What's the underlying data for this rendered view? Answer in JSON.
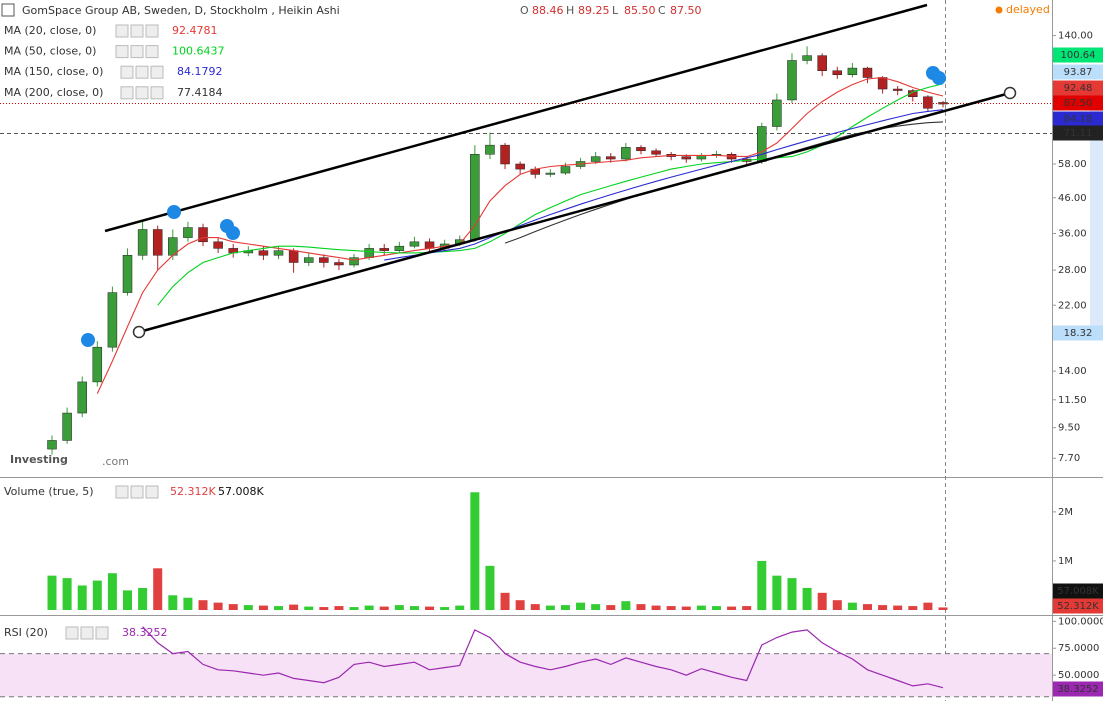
{
  "chart_data": [
    {
      "type": "candlestick",
      "title": "GomSpace Group AB, Sweden, D, Stockholm , Heikin Ashi",
      "ohlc": [
        {
          "label": "O",
          "value": "88.46"
        },
        {
          "label": "H",
          "value": "89.25"
        },
        {
          "label": "L",
          "value": "85.50"
        },
        {
          "label": "C",
          "value": "87.50"
        }
      ],
      "open": [
        8.2,
        8.7,
        10.5,
        13,
        16.5,
        24,
        31,
        37,
        31,
        35,
        37.5,
        34,
        32.5,
        31.5,
        32,
        31,
        32,
        29.5,
        30.5,
        29.5,
        29,
        30.5,
        32.5,
        32,
        33,
        34,
        32.5,
        33.5,
        34.5,
        62,
        66,
        58,
        56,
        54,
        54.5,
        57,
        59,
        61,
        60,
        65,
        63.5,
        62,
        61,
        60,
        61.5,
        62,
        60,
        59,
        75,
        90,
        118,
        122,
        110,
        107,
        112,
        105,
        97,
        96,
        92,
        88.46
      ],
      "high": [
        9,
        10.9,
        13.5,
        17.2,
        25,
        32.5,
        39,
        38,
        37,
        39,
        38.5,
        35,
        33.5,
        33,
        33,
        33,
        32.5,
        31.5,
        31.2,
        30.2,
        31.3,
        33.5,
        33.5,
        34,
        35.2,
        34.8,
        34.5,
        35.5,
        66,
        72,
        67,
        59,
        57,
        56,
        58.5,
        60.5,
        63,
        62.5,
        67,
        66,
        64.5,
        63,
        62,
        62.5,
        63.5,
        62.8,
        61,
        77,
        94,
        124,
        130,
        124,
        113,
        116,
        113,
        106,
        99,
        97,
        93,
        89.25
      ],
      "low": [
        7.9,
        8.5,
        10.2,
        12.6,
        16,
        23.5,
        30,
        28,
        30,
        34,
        33,
        31.5,
        30.5,
        30.8,
        30,
        30.2,
        27.5,
        28.8,
        28.5,
        28,
        28.5,
        30,
        31,
        31.5,
        32.5,
        31.8,
        32,
        33,
        34,
        60,
        56,
        54,
        52.5,
        53,
        53.8,
        56,
        58,
        58.5,
        59,
        62,
        61,
        59.5,
        58.5,
        59,
        60.5,
        58.5,
        57.5,
        58,
        73,
        88,
        115,
        106,
        104,
        105,
        101,
        94,
        93,
        89,
        83,
        85.5
      ],
      "close": [
        8.7,
        10.5,
        13,
        16.5,
        24,
        31,
        37,
        31,
        35,
        37.5,
        34,
        32.5,
        31.5,
        32,
        31,
        32,
        29.5,
        30.5,
        29.5,
        29,
        30.5,
        32.5,
        32,
        33,
        34,
        32.5,
        33.5,
        34.5,
        62,
        66,
        58,
        56,
        54,
        54.5,
        57,
        59,
        61,
        60,
        65,
        63.5,
        62,
        61,
        60,
        61.5,
        62,
        60,
        59,
        75,
        90,
        118,
        122,
        110,
        107,
        112,
        105,
        97,
        96,
        92,
        85,
        87.5
      ],
      "up_color": "#3a9d3a",
      "down_color": "#b22222",
      "series": [
        {
          "name": "MA (20, close, 0)",
          "last_label": "92.4781",
          "color": "#e53935",
          "values": [
            null,
            null,
            null,
            12,
            15,
            19,
            24,
            28,
            31,
            33.5,
            35,
            35,
            34,
            33.5,
            33,
            32.5,
            32,
            31.5,
            31,
            30.5,
            30,
            30.5,
            31,
            31.5,
            32,
            32.5,
            33,
            33.5,
            38,
            45,
            50,
            54,
            56,
            57,
            57.5,
            58,
            58.5,
            59,
            59.5,
            60.5,
            61,
            61.5,
            61.5,
            61.5,
            61.5,
            61.2,
            61,
            63,
            67,
            74,
            82,
            89,
            95,
            100,
            104,
            105,
            102,
            98,
            95,
            92.48
          ]
        },
        {
          "name": "MA (50, close, 0)",
          "last_label": "100.6437",
          "color": "#00d21e",
          "values": [
            null,
            null,
            null,
            null,
            null,
            null,
            null,
            22,
            25,
            27.5,
            29.5,
            30.5,
            31.5,
            32,
            32.5,
            33,
            33,
            32.8,
            32.5,
            32.2,
            32,
            31.8,
            31.6,
            31.5,
            31.5,
            31.6,
            31.8,
            32,
            32.5,
            34,
            36,
            38.5,
            41,
            43,
            45,
            47,
            48.5,
            50,
            51.5,
            53,
            54.5,
            56,
            57,
            58,
            58.5,
            59,
            59.5,
            60,
            60.5,
            61,
            63,
            66,
            70,
            75,
            80,
            85,
            90,
            95,
            98,
            100.64
          ]
        },
        {
          "name": "MA (150, close, 0)",
          "last_label": "84.1792",
          "color": "#2a2ad0",
          "values": [
            null,
            null,
            null,
            null,
            null,
            null,
            null,
            null,
            null,
            null,
            null,
            null,
            null,
            null,
            null,
            null,
            null,
            null,
            null,
            null,
            null,
            null,
            30,
            30.5,
            31,
            31.5,
            32,
            32.5,
            33.5,
            35,
            36.5,
            38,
            39.5,
            41,
            42.5,
            44,
            45.5,
            47,
            48.5,
            50,
            51.5,
            53,
            54.5,
            56,
            57.5,
            59,
            60.5,
            62,
            64,
            66,
            68,
            70,
            72,
            74,
            76,
            78,
            80,
            82,
            83.2,
            84.18
          ]
        },
        {
          "name": "MA (200, close, 0)",
          "last_label": "77.4184",
          "color": "#333333",
          "values": [
            null,
            null,
            null,
            null,
            null,
            null,
            null,
            null,
            null,
            null,
            null,
            null,
            null,
            null,
            null,
            null,
            null,
            null,
            null,
            null,
            null,
            null,
            null,
            null,
            null,
            null,
            null,
            null,
            null,
            null,
            33.7,
            35,
            36.5,
            38,
            39.5,
            41,
            42.5,
            44,
            45.5,
            47,
            48.5,
            50,
            51.5,
            53,
            54.5,
            56,
            57.5,
            59,
            61,
            63,
            65,
            67,
            69,
            71,
            72.5,
            74,
            75.2,
            76.2,
            77,
            77.4184
          ]
        }
      ],
      "log_scale": true,
      "ylim": [
        6.77,
        178.7
      ],
      "yticks": [
        {
          "value": 7.7,
          "label": "7.70"
        },
        {
          "value": 9.5,
          "label": "9.50"
        },
        {
          "value": 11.5,
          "label": "11.50"
        },
        {
          "value": 14,
          "label": "14.00"
        },
        {
          "value": 22,
          "label": "22.00"
        },
        {
          "value": 28,
          "label": "28.00"
        },
        {
          "value": 36,
          "label": "36.00"
        },
        {
          "value": 46,
          "label": "46.00"
        },
        {
          "value": 58,
          "label": "58.00"
        },
        {
          "value": 140,
          "label": "140.00"
        }
      ],
      "price_labels": [
        {
          "label": "100.64",
          "bg": "#00e676",
          "fg": "#000000"
        },
        {
          "label": "93.87",
          "bg": "#bbdefb",
          "fg": "#1a237e"
        },
        {
          "label": "92.48",
          "bg": "#e53935",
          "fg": "#ffffff"
        },
        {
          "label": "87.50",
          "bg": "#e00000",
          "fg": "#ffffff"
        },
        {
          "label": "84.18",
          "bg": "#2a2ad0",
          "fg": "#ffffff"
        },
        {
          "label": "71.11",
          "bg": "#222222",
          "fg": "#ffffff"
        },
        {
          "label": "18.32",
          "bg": "#bbdefb",
          "fg": "#1a237e"
        }
      ]
    },
    {
      "type": "bar",
      "title": "Volume (true, 5)",
      "legend_values": [
        "52.312K",
        "57.008K"
      ],
      "values": [
        700000,
        650000,
        500000,
        600000,
        750000,
        400000,
        450000,
        850000,
        300000,
        250000,
        200000,
        150000,
        120000,
        100000,
        90000,
        80000,
        110000,
        70000,
        60000,
        80000,
        60000,
        90000,
        70000,
        100000,
        80000,
        70000,
        60000,
        90000,
        2400000,
        900000,
        350000,
        200000,
        120000,
        90000,
        100000,
        150000,
        120000,
        100000,
        180000,
        120000,
        90000,
        80000,
        70000,
        90000,
        80000,
        70000,
        80000,
        1000000,
        700000,
        650000,
        450000,
        350000,
        200000,
        150000,
        120000,
        100000,
        90000,
        80000,
        150000,
        52312
      ],
      "up_color": "#33cc33",
      "down_color": "#e04040",
      "ylim": [
        0,
        2650000
      ],
      "yticks": [
        {
          "value": 1000000,
          "label": "1M"
        },
        {
          "value": 2000000,
          "label": "2M"
        }
      ],
      "price_labels": [
        {
          "label": "57.008K",
          "bg": "#111111",
          "fg": "#ffffff"
        },
        {
          "label": "52.312K",
          "bg": "#e53935",
          "fg": "#ffffff"
        }
      ]
    },
    {
      "type": "line",
      "title": "RSI (20)",
      "last_label": "38.3252",
      "values": [
        null,
        null,
        null,
        null,
        null,
        null,
        95,
        80,
        70,
        72,
        60,
        55,
        54,
        52,
        50,
        52,
        47,
        45,
        43,
        48,
        60,
        62,
        58,
        60,
        62,
        55,
        57,
        59,
        92,
        85,
        70,
        62,
        58,
        55,
        58,
        62,
        65,
        60,
        66,
        62,
        58,
        55,
        50,
        56,
        52,
        48,
        45,
        78,
        85,
        90,
        92,
        80,
        72,
        65,
        55,
        50,
        45,
        40,
        42,
        38.3252
      ],
      "color": "#9c27b0",
      "band_color": "#f6e1f6",
      "bands": [
        30,
        70
      ],
      "ylim": [
        26,
        104
      ],
      "yticks": [
        {
          "value": 50,
          "label": "50.0000"
        },
        {
          "value": 75,
          "label": "75.0000"
        },
        {
          "value": 100,
          "label": "100.0000"
        }
      ]
    }
  ],
  "ui": {
    "status": "delayed",
    "logo": "Investing",
    "logo_suffix": ".com"
  }
}
